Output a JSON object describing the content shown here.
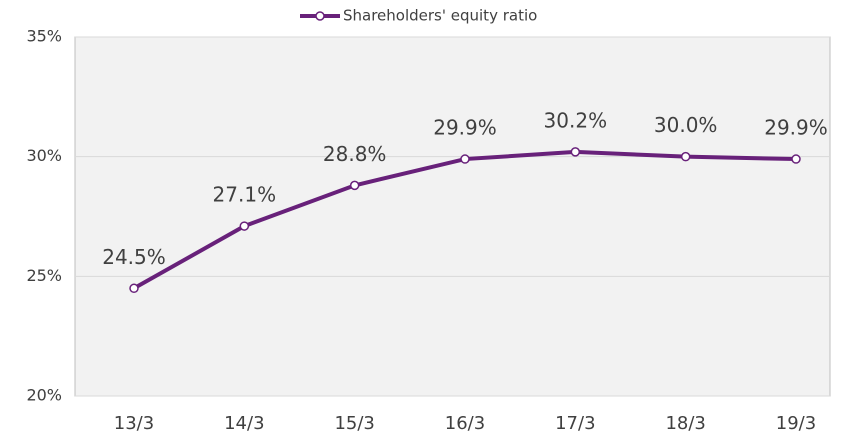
{
  "chart_data": {
    "type": "line",
    "categories": [
      "13/3",
      "14/3",
      "15/3",
      "16/3",
      "17/3",
      "18/3",
      "19/3"
    ],
    "series": [
      {
        "name": "Shareholders' equity ratio",
        "color": "#68217a",
        "values": [
          24.5,
          27.1,
          28.8,
          29.9,
          30.2,
          30.0,
          29.9
        ],
        "value_labels": [
          "24.5%",
          "27.1%",
          "28.8%",
          "29.9%",
          "30.2%",
          "30.0%",
          "29.9%"
        ]
      }
    ],
    "ylim": [
      20,
      35
    ],
    "yticks": [
      {
        "value": 20,
        "label": "20%"
      },
      {
        "value": 25,
        "label": "25%"
      },
      {
        "value": 30,
        "label": "30%"
      },
      {
        "value": 35,
        "label": "35%"
      }
    ],
    "grid": true,
    "legend": "top"
  }
}
